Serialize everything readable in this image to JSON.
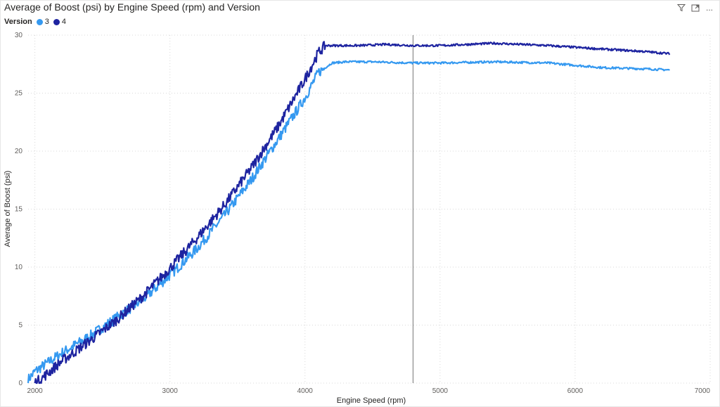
{
  "header": {
    "title": "Average of Boost (psi) by Engine Speed (rpm) and Version"
  },
  "toolbar": {
    "icons": [
      "filter-icon",
      "focus-mode-icon",
      "more-options-icon"
    ],
    "more_label": "..."
  },
  "legend": {
    "title": "Version",
    "items": [
      {
        "label": "3",
        "color": "#3599f0"
      },
      {
        "label": "4",
        "color": "#1e24a0"
      }
    ]
  },
  "chart_data": {
    "type": "line",
    "xlabel": "Engine Speed (rpm)",
    "ylabel": "Average of Boost (psi)",
    "xlim": [
      1950,
      7000
    ],
    "ylim": [
      0,
      30
    ],
    "xticks": [
      "2000",
      "3000",
      "4000",
      "5000",
      "6000",
      "7000"
    ],
    "yticks": [
      "0",
      "5",
      "10",
      "15",
      "20",
      "25",
      "30"
    ],
    "grid": true,
    "reference_line_x": 4800,
    "series": [
      {
        "name": "3",
        "color": "#3599f0",
        "x": [
          1950,
          2000,
          2100,
          2200,
          2400,
          2600,
          2800,
          3000,
          3200,
          3400,
          3600,
          3800,
          4000,
          4100,
          4200,
          4300,
          4500,
          4800,
          5000,
          5400,
          5800,
          6200,
          6500,
          6700
        ],
        "y": [
          0.3,
          1.0,
          1.8,
          2.6,
          4.0,
          5.6,
          7.2,
          9.3,
          11.6,
          14.4,
          17.5,
          21.0,
          24.6,
          26.8,
          27.6,
          27.7,
          27.7,
          27.6,
          27.6,
          27.7,
          27.6,
          27.2,
          27.1,
          27.0
        ]
      },
      {
        "name": "4",
        "color": "#1e24a0",
        "x": [
          2000,
          2060,
          2150,
          2200,
          2400,
          2600,
          2800,
          3000,
          3200,
          3400,
          3600,
          3800,
          4000,
          4100,
          4150,
          4200,
          4400,
          4600,
          4800,
          5000,
          5400,
          5800,
          6200,
          6500,
          6700
        ],
        "y": [
          0,
          0.5,
          1.4,
          1.9,
          3.6,
          5.4,
          7.5,
          9.9,
          12.5,
          15.3,
          18.5,
          22.1,
          26.2,
          28.5,
          29.1,
          29.1,
          29.1,
          29.2,
          29.1,
          29.1,
          29.3,
          29.1,
          28.8,
          28.6,
          28.4
        ]
      }
    ]
  }
}
